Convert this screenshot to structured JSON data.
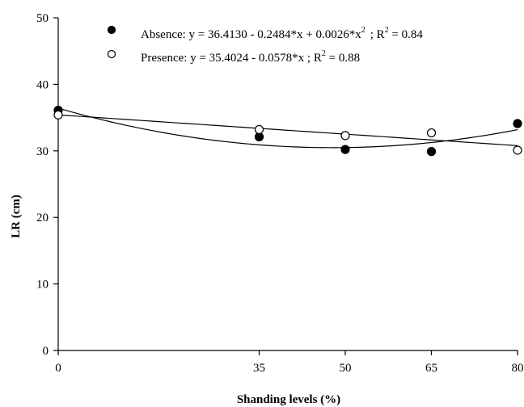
{
  "chart_data": {
    "type": "scatter",
    "xlabel": "Shanding levels (%)",
    "ylabel": "LR (cm)",
    "xlim": [
      0,
      80
    ],
    "ylim": [
      0,
      50
    ],
    "x_ticks": [
      0,
      35,
      50,
      65,
      80
    ],
    "y_ticks": [
      0,
      10,
      20,
      30,
      40,
      50
    ],
    "grid": false,
    "legend_position": "top",
    "series": [
      {
        "name": "Absence",
        "marker": "filled-circle",
        "x": [
          0,
          35,
          50,
          65,
          80
        ],
        "y": [
          36.1,
          32.1,
          30.2,
          29.9,
          34.1
        ],
        "equation_text": "Absence: y = 36.4130 - 0.2484*x + 0.0026*x",
        "equation_sup": "2",
        "r2_text": "; R",
        "r2_sup": "2",
        "r2_value": " = 0.84",
        "fit": {
          "type": "quadratic",
          "a": 36.413,
          "b": -0.2484,
          "c": 0.0026
        }
      },
      {
        "name": "Presence",
        "marker": "open-circle",
        "x": [
          0,
          35,
          50,
          65,
          80
        ],
        "y": [
          35.4,
          33.2,
          32.3,
          32.7,
          30.1
        ],
        "equation_text": "Presence: y = 35.4024 - 0.0578*x ; R",
        "equation_sup": "2",
        "r2_value": " = 0.88",
        "fit": {
          "type": "linear",
          "a": 35.4024,
          "b": -0.0578
        }
      }
    ]
  }
}
